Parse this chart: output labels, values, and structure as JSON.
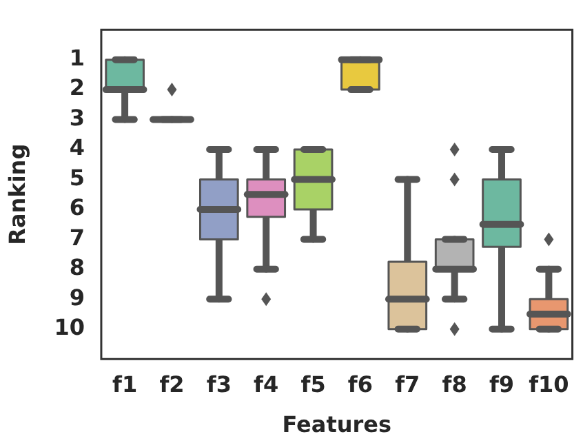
{
  "chart_data": {
    "type": "box",
    "xlabel": "Features",
    "ylabel": "Ranking",
    "categories": [
      "f1",
      "f2",
      "f3",
      "f4",
      "f5",
      "f6",
      "f7",
      "f8",
      "f9",
      "f10"
    ],
    "colors": [
      "#6db8a0",
      "#555555",
      "#919fc6",
      "#dd8fbf",
      "#a9d266",
      "#e8c93f",
      "#dcc39b",
      "#b3b3b3",
      "#6db8a0",
      "#e8976f"
    ],
    "boxes": [
      {
        "low": 1,
        "q1": 1,
        "median": 2,
        "q3": 2,
        "high": 3
      },
      {
        "low": 3,
        "q1": 3,
        "median": 3,
        "q3": 3,
        "high": 3,
        "outliers": [
          2
        ]
      },
      {
        "low": 4,
        "q1": 5,
        "median": 6,
        "q3": 7,
        "high": 9
      },
      {
        "low": 4,
        "q1": 5,
        "median": 5.5,
        "q3": 6.25,
        "high": 8,
        "outliers": [
          9
        ]
      },
      {
        "low": 4,
        "q1": 4,
        "median": 5,
        "q3": 6,
        "high": 7
      },
      {
        "low": 1,
        "q1": 1,
        "median": 1,
        "q3": 2,
        "high": 2
      },
      {
        "low": 5,
        "q1": 7.75,
        "median": 9,
        "q3": 10,
        "high": 10
      },
      {
        "low": 7,
        "q1": 7,
        "median": 8,
        "q3": 8,
        "high": 9,
        "outliers": [
          4,
          5,
          10
        ]
      },
      {
        "low": 4,
        "q1": 5,
        "median": 6.5,
        "q3": 7.25,
        "high": 10
      },
      {
        "low": 8,
        "q1": 9,
        "median": 9.5,
        "q3": 10,
        "high": 10,
        "outliers": [
          7
        ]
      }
    ],
    "ylim": [
      11,
      0
    ],
    "yticks": [
      1,
      2,
      3,
      4,
      5,
      6,
      7,
      8,
      9,
      10
    ],
    "grid": false
  }
}
